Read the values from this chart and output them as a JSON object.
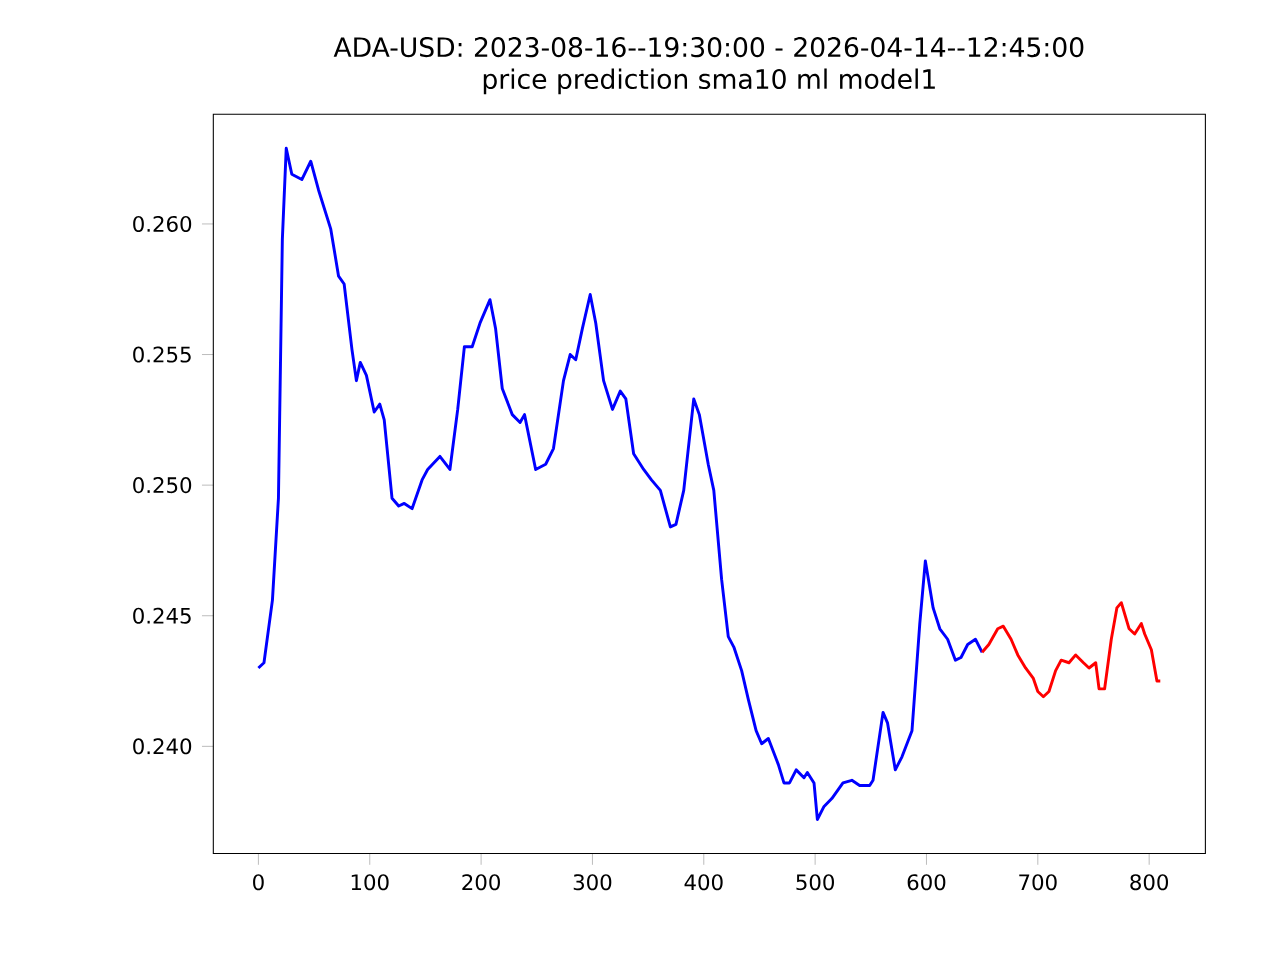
{
  "chart_data": {
    "type": "line",
    "title": "ADA-USD: 2023-08-16--19:30:00 - 2026-04-14--12:45:00",
    "subtitle": "price prediction sma10 ml model1",
    "xlim": [
      -40.5,
      850.5
    ],
    "xticks": [
      0,
      100,
      200,
      300,
      400,
      500,
      600,
      700,
      800
    ],
    "ylim": [
      0.2359,
      0.2642
    ],
    "yticks": [
      {
        "value": 0.24,
        "label": "0.240"
      },
      0.245,
      {
        "value": 0.25,
        "label": "0.250"
      },
      0.255,
      {
        "value": 0.26,
        "label": "0.260"
      }
    ],
    "grid": false,
    "series": [
      {
        "color": "#0000ff",
        "x": [
          0,
          5,
          12.6,
          18,
          21.5,
          25,
          30,
          39,
          47,
          54,
          65,
          72,
          77,
          84,
          88,
          91.5,
          97,
          104,
          109,
          113,
          120,
          126,
          131,
          138,
          147,
          152,
          163,
          172,
          179,
          185,
          192,
          199,
          208,
          213,
          219,
          228,
          235,
          239,
          249,
          258,
          265,
          274,
          280,
          285,
          291,
          298,
          303,
          310,
          318,
          325,
          330,
          337,
          346,
          353,
          361,
          370,
          375,
          382,
          391,
          396,
          404,
          409,
          416,
          422,
          427,
          434,
          440,
          447,
          452,
          458,
          467,
          472,
          477,
          483,
          490,
          493,
          499,
          502,
          508,
          515,
          525,
          533,
          540,
          549,
          552,
          561,
          565,
          572,
          578,
          587,
          594,
          599,
          606,
          612,
          619,
          626,
          631,
          637,
          644,
          650
        ],
        "values": [
          0.243,
          0.2432,
          0.2456,
          0.2495,
          0.2594,
          0.2629,
          0.2619,
          0.2617,
          0.2624,
          0.2613,
          0.2598,
          0.258,
          0.2577,
          0.2552,
          0.254,
          0.2547,
          0.2542,
          0.2528,
          0.2531,
          0.2525,
          0.2495,
          0.2492,
          0.2493,
          0.2491,
          0.2502,
          0.2506,
          0.2511,
          0.2506,
          0.2529,
          0.2553,
          0.2553,
          0.2562,
          0.2571,
          0.256,
          0.2537,
          0.2527,
          0.2524,
          0.2527,
          0.2506,
          0.2508,
          0.2514,
          0.254,
          0.255,
          0.2548,
          0.256,
          0.2573,
          0.2562,
          0.254,
          0.2529,
          0.2536,
          0.2533,
          0.2512,
          0.2506,
          0.2502,
          0.2498,
          0.2484,
          0.2485,
          0.2498,
          0.2533,
          0.2527,
          0.2508,
          0.2498,
          0.2464,
          0.2442,
          0.2438,
          0.2429,
          0.2418,
          0.2406,
          0.2401,
          0.2403,
          0.2393,
          0.2386,
          0.2386,
          0.2391,
          0.2388,
          0.239,
          0.2386,
          0.2372,
          0.2377,
          0.238,
          0.2386,
          0.2387,
          0.2385,
          0.2385,
          0.2387,
          0.2413,
          0.2409,
          0.2391,
          0.2396,
          0.2406,
          0.2447,
          0.2471,
          0.2453,
          0.2445,
          0.2441,
          0.2433,
          0.2434,
          0.2439,
          0.2441,
          0.2436
        ]
      },
      {
        "color": "#ff0000",
        "x": [
          650,
          656,
          664,
          669,
          676,
          682,
          689,
          696,
          700,
          705,
          710,
          716,
          721,
          728,
          734,
          741,
          746,
          752,
          755,
          760,
          766,
          771,
          775,
          782,
          787,
          793,
          796,
          802,
          807,
          810
        ],
        "values": [
          0.2436,
          0.2439,
          0.2445,
          0.2446,
          0.2441,
          0.2435,
          0.243,
          0.2426,
          0.2421,
          0.2419,
          0.2421,
          0.2429,
          0.2433,
          0.2432,
          0.2435,
          0.2432,
          0.243,
          0.2432,
          0.2422,
          0.2422,
          0.2441,
          0.2453,
          0.2455,
          0.2445,
          0.2443,
          0.2447,
          0.2443,
          0.2437,
          0.2425,
          0.2425
        ]
      }
    ]
  }
}
